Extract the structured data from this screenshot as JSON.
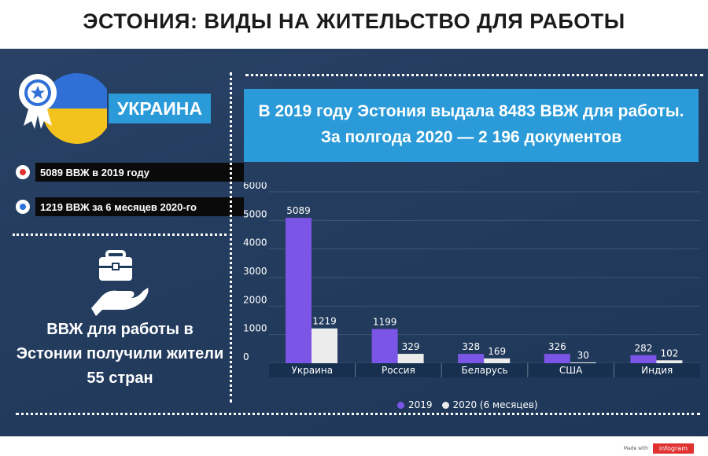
{
  "title": "ЭСТОНИЯ: ВИДЫ НА ЖИТЕЛЬСТВО ДЛЯ РАБОТЫ",
  "country_label": "УКРАИНА",
  "stats": [
    {
      "text": "5089 ВВЖ в 2019 году",
      "icon": "red-dot-icon",
      "color": "#e03131"
    },
    {
      "text": "1219 ВВЖ за 6 месяцев 2020-го",
      "icon": "blue-dot-icon",
      "color": "#2a73d8"
    }
  ],
  "left_caption": "ВВЖ для работы в Эстонии получили жители 55 стран",
  "headline": "В 2019 году Эстония выдала 8483 ВВЖ для работы. За полгода 2020 — 2 196 документов",
  "footer": {
    "made_with": "Made with",
    "brand": "infogram"
  },
  "colors": {
    "background": "#213b5f",
    "accent": "#2a9bd8",
    "series_2019": "#7b55e6",
    "series_2020": "#ececec",
    "flag_blue": "#2f6fd6",
    "flag_yellow": "#f3c21c"
  },
  "chart_data": {
    "type": "bar",
    "categories": [
      "Украина",
      "Россия",
      "Беларусь",
      "США",
      "Индия"
    ],
    "series": [
      {
        "name": "2019",
        "values": [
          5089,
          1199,
          328,
          326,
          282
        ]
      },
      {
        "name": "2020 (6 месяцев)",
        "values": [
          1219,
          329,
          169,
          30,
          102
        ]
      }
    ],
    "y_ticks": [
      0,
      1000,
      2000,
      3000,
      4000,
      5000,
      6000
    ],
    "ylim": [
      0,
      6000
    ],
    "grid": true,
    "legend_position": "bottom"
  }
}
